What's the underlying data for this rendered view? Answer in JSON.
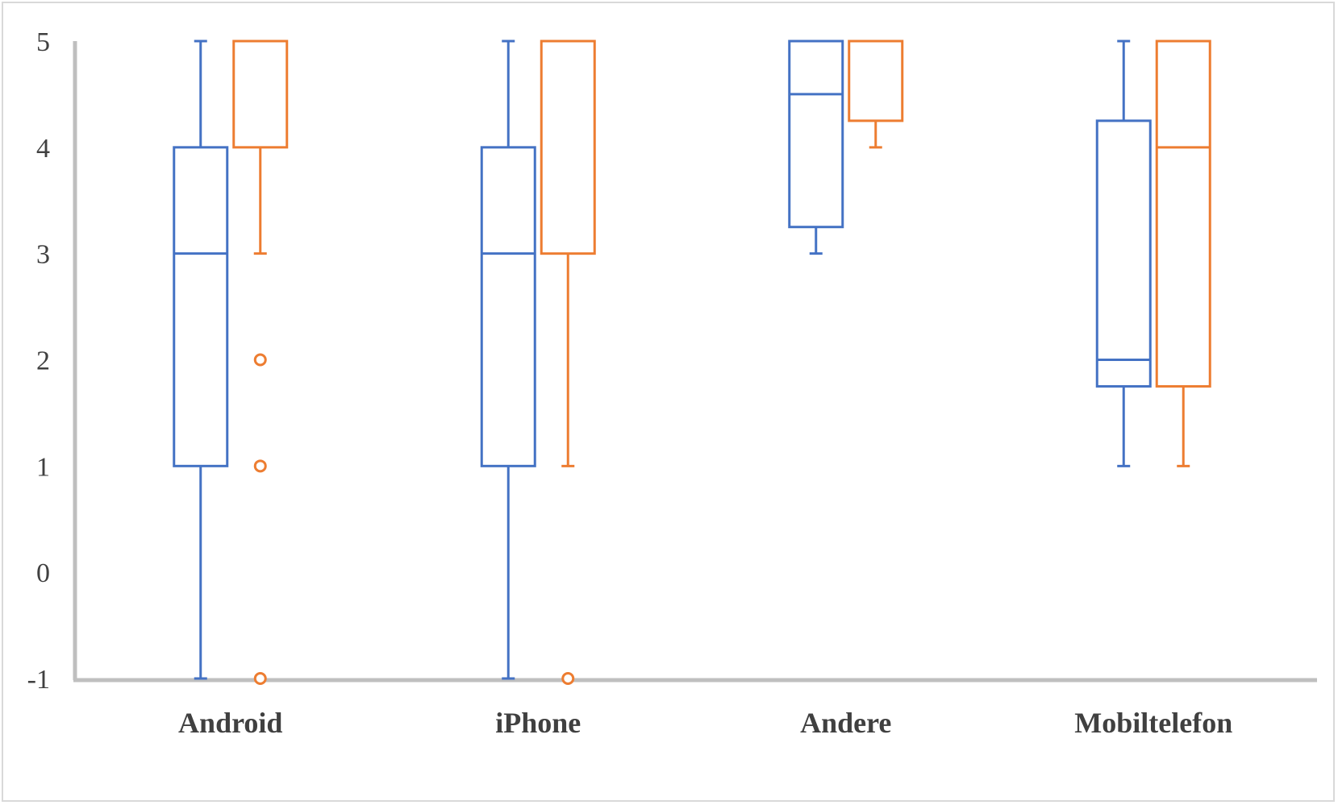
{
  "chart_data": {
    "type": "boxplot",
    "title": "",
    "xlabel": "",
    "ylabel": "",
    "ylim": [
      -1,
      5
    ],
    "yticks": [
      -1,
      0,
      1,
      2,
      3,
      4,
      5
    ],
    "ytick_labels": [
      "-1",
      "0",
      "1",
      "2",
      "3",
      "4",
      "5"
    ],
    "grid": false,
    "legend": "none",
    "categories": [
      "Android",
      "iPhone",
      "Andere",
      "Mobiltelefon"
    ],
    "series": [
      {
        "color": "#4472c4",
        "boxes": [
          {
            "whisker_low": -1,
            "q1": 1,
            "median": 3,
            "q3": 4,
            "whisker_high": 5,
            "outliers": []
          },
          {
            "whisker_low": -1,
            "q1": 1,
            "median": 3,
            "q3": 4,
            "whisker_high": 5,
            "outliers": []
          },
          {
            "whisker_low": 3,
            "q1": 3.25,
            "median": 4.5,
            "q3": 5,
            "whisker_high": 5,
            "outliers": []
          },
          {
            "whisker_low": 1,
            "q1": 1.75,
            "median": 2,
            "q3": 4.25,
            "whisker_high": 5,
            "outliers": []
          }
        ]
      },
      {
        "color": "#ed7d31",
        "boxes": [
          {
            "whisker_low": 3,
            "q1": 4,
            "median": 5,
            "q3": 5,
            "whisker_high": 5,
            "outliers": [
              2,
              1,
              -1
            ]
          },
          {
            "whisker_low": 1,
            "q1": 3,
            "median": 5,
            "q3": 5,
            "whisker_high": 5,
            "outliers": [
              -1
            ]
          },
          {
            "whisker_low": 4,
            "q1": 4.25,
            "median": 5,
            "q3": 5,
            "whisker_high": 5,
            "outliers": []
          },
          {
            "whisker_low": 1,
            "q1": 1.75,
            "median": 4,
            "q3": 5,
            "whisker_high": 5,
            "outliers": []
          }
        ]
      }
    ],
    "axis_color": "#bfbfbf"
  }
}
